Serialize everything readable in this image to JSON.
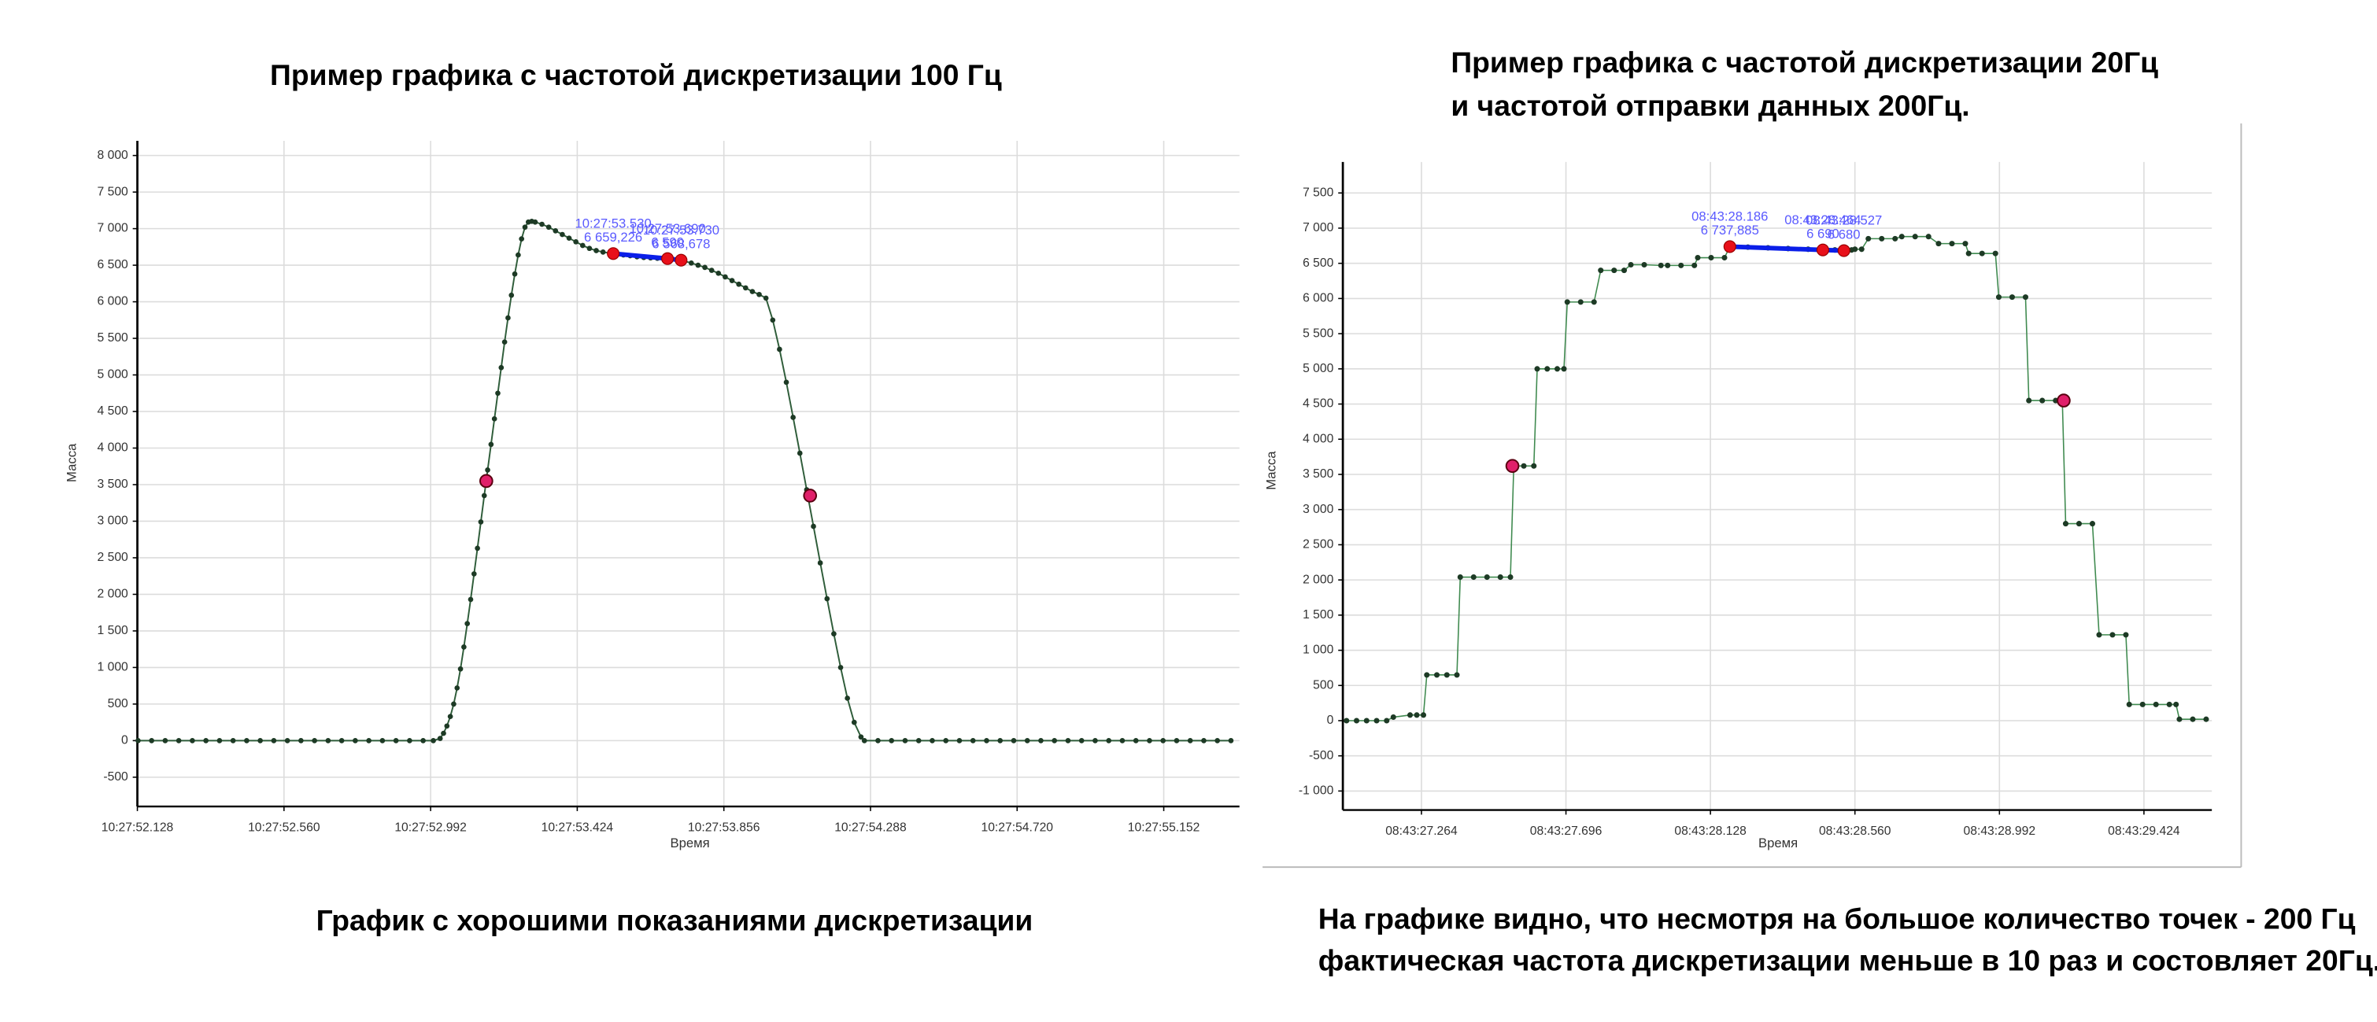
{
  "chart_data": [
    {
      "type": "line",
      "title": [
        "Пример графика с частотой дискретизации 100 Гц"
      ],
      "caption": [
        "График с хорошими показаниями дискретизации"
      ],
      "x_label": "Время",
      "y_label": "Масса",
      "color": "#2f5d3a",
      "highlight_color": "#0a1ee8",
      "highlight_marker_color": "#e8101a",
      "point_color": "#e0206a",
      "grid": true,
      "xlim": [
        37672.128,
        37675.375
      ],
      "xticks": [
        {
          "value": 37672.128,
          "label": "10:27:52.128"
        },
        {
          "value": 37672.56,
          "label": "10:27:52.560"
        },
        {
          "value": 37672.992,
          "label": "10:27:52.992"
        },
        {
          "value": 37673.424,
          "label": "10:27:53.424"
        },
        {
          "value": 37673.856,
          "label": "10:27:53.856"
        },
        {
          "value": 37674.288,
          "label": "10:27:54.288"
        },
        {
          "value": 37674.72,
          "label": "10:27:54.720"
        },
        {
          "value": 37675.152,
          "label": "10:27:55.152"
        }
      ],
      "ylim": [
        -900,
        8200
      ],
      "yticks": [
        -500,
        0,
        500,
        {
          "value": 1000,
          "label": "1 000"
        },
        {
          "value": 1500,
          "label": "1 500"
        },
        {
          "value": 2000,
          "label": "2 000"
        },
        {
          "value": 2500,
          "label": "2 500"
        },
        {
          "value": 3000,
          "label": "3 000"
        },
        {
          "value": 3500,
          "label": "3 500"
        },
        {
          "value": 4000,
          "label": "4 000"
        },
        {
          "value": 4500,
          "label": "4 500"
        },
        {
          "value": 5000,
          "label": "5 000"
        },
        {
          "value": 5500,
          "label": "5 500"
        },
        {
          "value": 6000,
          "label": "6 000"
        },
        {
          "value": 6500,
          "label": "6 500"
        },
        {
          "value": 7000,
          "label": "7 000"
        },
        {
          "value": 7500,
          "label": "7 500"
        },
        {
          "value": 8000,
          "label": "8 000"
        }
      ],
      "x": [
        37672.13,
        37672.17,
        37672.21,
        37672.25,
        37672.29,
        37672.33,
        37672.37,
        37672.41,
        37672.45,
        37672.49,
        37672.53,
        37672.57,
        37672.61,
        37672.65,
        37672.69,
        37672.73,
        37672.77,
        37672.81,
        37672.85,
        37672.89,
        37672.93,
        37672.97,
        37673,
        37673.02,
        37673.03,
        37673.04,
        37673.05,
        37673.06,
        37673.07,
        37673.08,
        37673.09,
        37673.1,
        37673.11,
        37673.12,
        37673.13,
        37673.14,
        37673.15,
        37673.16,
        37673.17,
        37673.18,
        37673.19,
        37673.2,
        37673.21,
        37673.22,
        37673.23,
        37673.24,
        37673.25,
        37673.26,
        37673.27,
        37673.28,
        37673.29,
        37673.3,
        37673.32,
        37673.34,
        37673.36,
        37673.38,
        37673.4,
        37673.42,
        37673.44,
        37673.46,
        37673.48,
        37673.5,
        37673.52,
        37673.54,
        37673.56,
        37673.58,
        37673.6,
        37673.62,
        37673.64,
        37673.66,
        37673.68,
        37673.7,
        37673.72,
        37673.74,
        37673.76,
        37673.78,
        37673.8,
        37673.82,
        37673.84,
        37673.86,
        37673.88,
        37673.9,
        37673.92,
        37673.94,
        37673.96,
        37673.98,
        37674,
        37674.02,
        37674.04,
        37674.06,
        37674.08,
        37674.1,
        37674.12,
        37674.14,
        37674.16,
        37674.18,
        37674.2,
        37674.22,
        37674.24,
        37674.26,
        37674.27,
        37674.31,
        37674.35,
        37674.39,
        37674.43,
        37674.47,
        37674.51,
        37674.55,
        37674.59,
        37674.63,
        37674.67,
        37674.71,
        37674.75,
        37674.79,
        37674.83,
        37674.87,
        37674.91,
        37674.95,
        37674.99,
        37675.03,
        37675.07,
        37675.11,
        37675.15,
        37675.19,
        37675.23,
        37675.27,
        37675.31,
        37675.35
      ],
      "values": [
        0,
        0,
        0,
        0,
        0,
        0,
        0,
        0,
        0,
        0,
        0,
        0,
        0,
        0,
        0,
        0,
        0,
        0,
        0,
        0,
        0,
        0,
        0,
        30,
        100,
        200,
        330,
        500,
        720,
        980,
        1280,
        1600,
        1930,
        2280,
        2630,
        2990,
        3350,
        3700,
        4050,
        4400,
        4750,
        5100,
        5450,
        5780,
        6090,
        6380,
        6640,
        6860,
        7020,
        7090,
        7100,
        7090,
        7060,
        7020,
        6970,
        6920,
        6870,
        6820,
        6770,
        6730,
        6700,
        6680,
        6665,
        6655,
        6640,
        6630,
        6615,
        6605,
        6600,
        6595,
        6590,
        6585,
        6570,
        6555,
        6530,
        6500,
        6470,
        6430,
        6390,
        6340,
        6290,
        6240,
        6190,
        6140,
        6100,
        6050,
        5750,
        5350,
        4900,
        4420,
        3930,
        3430,
        2930,
        2430,
        1940,
        1460,
        1000,
        580,
        250,
        50,
        0,
        0,
        0,
        0,
        0,
        0,
        0,
        0,
        0,
        0,
        0,
        0,
        0,
        0,
        0,
        0,
        0,
        0,
        0,
        0,
        0,
        0,
        0,
        0,
        0,
        0,
        0,
        0
      ],
      "highlights": {
        "x": [
          37673.53,
          37673.69,
          37673.73
        ],
        "values": [
          6659.226,
          6590,
          6568.678
        ],
        "x_labels": [
          "10:27:53.530",
          "10:27:53.690",
          "10:27:53.730"
        ],
        "value_labels": [
          "6 659,226",
          "6 590",
          "6 568,678"
        ]
      },
      "points": {
        "x": [
          37673.156,
          37674.11
        ],
        "values": [
          3550,
          3350
        ]
      }
    },
    {
      "type": "line",
      "title": [
        "Пример графика с частотой дискретизации 20Гц",
        "и частотой отправки данных 200Гц."
      ],
      "caption": [
        "На графике видно, что несмотря на большое количество точек - 200 Гц",
        "фактическая частота дискретизации меньше в 10 раз и состовляет 20Гц."
      ],
      "x_label": "Время",
      "y_label": "Масса",
      "color": "#3f8a4f",
      "highlight_color": "#0a1ee8",
      "highlight_marker_color": "#e8101a",
      "point_color": "#e0206a",
      "grid": true,
      "xlim": [
        31407.029,
        31409.627
      ],
      "xticks": [
        {
          "value": 31407.264,
          "label": "08:43:27.264"
        },
        {
          "value": 31407.696,
          "label": "08:43:27.696"
        },
        {
          "value": 31408.128,
          "label": "08:43:28.128"
        },
        {
          "value": 31408.56,
          "label": "08:43:28.560"
        },
        {
          "value": 31408.992,
          "label": "08:43:28.992"
        },
        {
          "value": 31409.424,
          "label": "08:43:29.424"
        }
      ],
      "ylim": [
        -1270,
        7940
      ],
      "yticks": [
        {
          "value": -1000,
          "label": "-1 000"
        },
        -500,
        0,
        500,
        {
          "value": 1000,
          "label": "1 000"
        },
        {
          "value": 1500,
          "label": "1 500"
        },
        {
          "value": 2000,
          "label": "2 000"
        },
        {
          "value": 2500,
          "label": "2 500"
        },
        {
          "value": 3000,
          "label": "3 000"
        },
        {
          "value": 3500,
          "label": "3 500"
        },
        {
          "value": 4000,
          "label": "4 000"
        },
        {
          "value": 4500,
          "label": "4 500"
        },
        {
          "value": 5000,
          "label": "5 000"
        },
        {
          "value": 5500,
          "label": "5 500"
        },
        {
          "value": 6000,
          "label": "6 000"
        },
        {
          "value": 6500,
          "label": "6 500"
        },
        {
          "value": 7000,
          "label": "7 000"
        },
        {
          "value": 7500,
          "label": "7 500"
        }
      ],
      "x": [
        31407.04,
        31407.07,
        31407.1,
        31407.13,
        31407.16,
        31407.18,
        31407.23,
        31407.25,
        31407.27,
        31407.28,
        31407.31,
        31407.34,
        31407.37,
        31407.38,
        31407.42,
        31407.46,
        31407.5,
        31407.53,
        31407.54,
        31407.57,
        31407.6,
        31407.61,
        31407.64,
        31407.67,
        31407.69,
        31407.7,
        31407.74,
        31407.78,
        31407.8,
        31407.84,
        31407.87,
        31407.89,
        31407.93,
        31407.98,
        31408,
        31408.04,
        31408.08,
        31408.09,
        31408.13,
        31408.17,
        31408.186,
        31408.24,
        31408.3,
        31408.36,
        31408.42,
        31408.464,
        31408.5,
        31408.527,
        31408.55,
        31408.56,
        31408.58,
        31408.6,
        31408.64,
        31408.68,
        31408.7,
        31408.74,
        31408.78,
        31408.81,
        31408.85,
        31408.89,
        31408.9,
        31408.94,
        31408.98,
        31408.99,
        31409.03,
        31409.07,
        31409.08,
        31409.12,
        31409.16,
        31409.18,
        31409.19,
        31409.23,
        31409.27,
        31409.29,
        31409.33,
        31409.37,
        31409.38,
        31409.42,
        31409.46,
        31409.5,
        31409.52,
        31409.53,
        31409.57,
        31409.61
      ],
      "values": [
        0,
        0,
        0,
        0,
        0,
        50,
        80,
        80,
        80,
        650,
        650,
        650,
        650,
        2040,
        2040,
        2040,
        2040,
        2040,
        3620,
        3620,
        3620,
        5000,
        5000,
        5000,
        5000,
        5950,
        5950,
        5950,
        6400,
        6400,
        6400,
        6480,
        6480,
        6470,
        6470,
        6470,
        6470,
        6580,
        6580,
        6580,
        6737.885,
        6730,
        6720,
        6710,
        6700,
        6690,
        6690,
        6680,
        6690,
        6700,
        6700,
        6850,
        6850,
        6850,
        6880,
        6880,
        6880,
        6780,
        6780,
        6780,
        6640,
        6640,
        6640,
        6020,
        6020,
        6020,
        4550,
        4550,
        4550,
        4550,
        2800,
        2800,
        2800,
        1220,
        1220,
        1220,
        230,
        230,
        230,
        230,
        230,
        20,
        20,
        20
      ],
      "highlights": {
        "x": [
          31408.186,
          31408.464,
          31408.527
        ],
        "values": [
          6737.885,
          6690,
          6680
        ],
        "x_labels": [
          "08:43:28.186",
          "08:43:28.464",
          "08:43:28.527"
        ],
        "value_labels": [
          "6 737,885",
          "6 690",
          "6 680"
        ]
      },
      "points": {
        "x": [
          31407.536,
          31409.184
        ],
        "values": [
          3620,
          4550
        ]
      }
    }
  ]
}
